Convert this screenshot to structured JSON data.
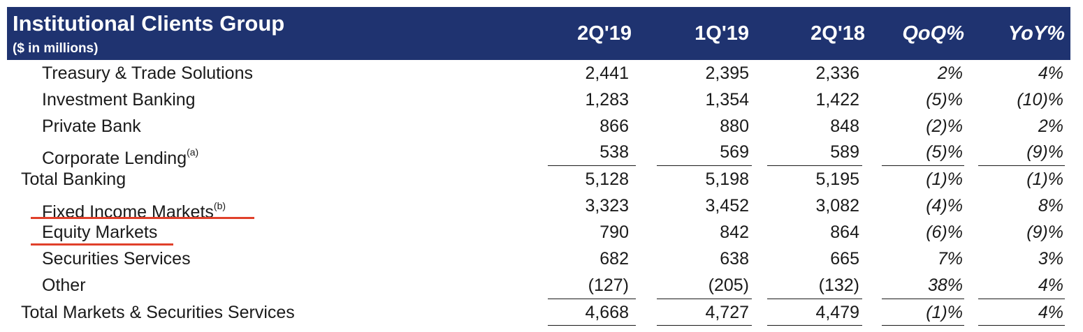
{
  "header": {
    "title": "Institutional Clients Group",
    "subtitle": "($ in millions)",
    "columns": [
      "2Q'19",
      "1Q'19",
      "2Q'18",
      "QoQ%",
      "YoY%"
    ]
  },
  "rows": [
    {
      "label": "Treasury & Trade Solutions",
      "sup": "",
      "values": [
        "2,441",
        "2,395",
        "2,336",
        "2%",
        "4%"
      ]
    },
    {
      "label": "Investment Banking",
      "sup": "",
      "values": [
        "1,283",
        "1,354",
        "1,422",
        "(5)%",
        "(10)%"
      ]
    },
    {
      "label": "Private Bank",
      "sup": "",
      "values": [
        "866",
        "880",
        "848",
        "(2)%",
        "2%"
      ]
    },
    {
      "label": "Corporate Lending",
      "sup": "(a)",
      "values": [
        "538",
        "569",
        "589",
        "(5)%",
        "(9)%"
      ]
    },
    {
      "label": "Total Banking",
      "sup": "",
      "values": [
        "5,128",
        "5,198",
        "5,195",
        "(1)%",
        "(1)%"
      ]
    },
    {
      "label": "Fixed Income Markets",
      "sup": "(b)",
      "values": [
        "3,323",
        "3,452",
        "3,082",
        "(4)%",
        "8%"
      ]
    },
    {
      "label": "Equity Markets",
      "sup": "",
      "values": [
        "790",
        "842",
        "864",
        "(6)%",
        "(9)%"
      ]
    },
    {
      "label": "Securities Services",
      "sup": "",
      "values": [
        "682",
        "638",
        "665",
        "7%",
        "3%"
      ]
    },
    {
      "label": "Other",
      "sup": "",
      "values": [
        "(127)",
        "(205)",
        "(132)",
        "38%",
        "4%"
      ]
    },
    {
      "label": "Total Markets & Securities Services",
      "sup": "",
      "values": [
        "4,668",
        "4,727",
        "4,479",
        "(1)%",
        "4%"
      ]
    }
  ],
  "colors": {
    "header_bg": "#1f3370",
    "highlight_underline": "#e0402a"
  }
}
